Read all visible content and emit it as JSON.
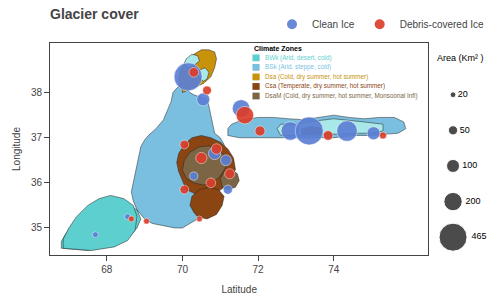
{
  "chart_data": {
    "type": "bubble",
    "title": "Glacier cover",
    "x_label": "Latitude",
    "y_label": "Longitude",
    "xlim": [
      66.5,
      76.5
    ],
    "ylim": [
      34.4,
      39.1
    ],
    "xticks": [
      68,
      70,
      72,
      74
    ],
    "yticks": [
      35,
      36,
      37,
      38
    ],
    "grid": false,
    "series": [
      {
        "name": "Clean Ice",
        "color": "#5B7FD4",
        "x": [
          70.15,
          70.55,
          71.55,
          72.85,
          73.35,
          74.35,
          75.05,
          70.85,
          71.15,
          71.2,
          70.3,
          68.55,
          67.7
        ],
        "y": [
          38.35,
          37.85,
          37.65,
          37.15,
          37.15,
          37.15,
          37.1,
          36.65,
          36.5,
          35.85,
          36.15,
          35.25,
          34.85
        ],
        "area": [
          465,
          100,
          180,
          200,
          465,
          250,
          100,
          90,
          70,
          50,
          40,
          20,
          20
        ]
      },
      {
        "name": "Debris-covered Ice",
        "color": "#DC3D2A",
        "x": [
          70.3,
          70.65,
          71.65,
          72.05,
          73.85,
          75.3,
          70.9,
          70.5,
          71.25,
          70.75,
          70.05,
          68.65,
          69.05,
          70.45,
          70.05
        ],
        "y": [
          38.45,
          38.05,
          37.5,
          37.15,
          37.05,
          37.05,
          36.75,
          36.55,
          36.2,
          36.0,
          35.85,
          35.2,
          35.15,
          35.2,
          36.85
        ],
        "area": [
          55,
          45,
          180,
          60,
          55,
          30,
          65,
          75,
          60,
          55,
          45,
          20,
          20,
          20,
          45
        ]
      }
    ],
    "size_legend": {
      "title": "Area (Km² )",
      "values": [
        20,
        50,
        100,
        200,
        465
      ]
    },
    "zones": {
      "title": "Climate Zones",
      "items": [
        {
          "name": "BWk (Arid, desert, cold)",
          "color": "#5ECFCF"
        },
        {
          "name": "BSk (Arid, steppe, cold)",
          "color": "#7ABFDF"
        },
        {
          "name": "Dsa (Cold, dry summer, hot summer)",
          "color": "#C8920A"
        },
        {
          "name": "Csa (Temperate, dry summer, hot summer)",
          "color": "#8B4513"
        },
        {
          "name": "DsaM (Cold, dry summer, hot summer, Monsoonal Infl)",
          "color": "#7B6545"
        }
      ]
    },
    "regions": [
      {
        "color": "#7ABFDF",
        "points": [
          [
            69.1,
            37.05
          ],
          [
            69.3,
            37.2
          ],
          [
            69.5,
            37.4
          ],
          [
            69.6,
            37.6
          ],
          [
            69.7,
            37.8
          ],
          [
            69.75,
            38.0
          ],
          [
            69.85,
            38.1
          ],
          [
            70.0,
            38.2
          ],
          [
            70.1,
            38.1
          ],
          [
            70.2,
            38.0
          ],
          [
            70.3,
            37.95
          ],
          [
            70.5,
            37.9
          ],
          [
            70.65,
            37.85
          ],
          [
            70.7,
            37.7
          ],
          [
            70.75,
            37.5
          ],
          [
            70.8,
            37.3
          ],
          [
            70.85,
            37.1
          ],
          [
            71.0,
            37.0
          ],
          [
            71.1,
            36.85
          ],
          [
            71.15,
            36.7
          ],
          [
            71.1,
            36.5
          ],
          [
            71.05,
            36.3
          ],
          [
            71.0,
            36.1
          ],
          [
            70.9,
            35.95
          ],
          [
            70.75,
            35.8
          ],
          [
            70.6,
            35.6
          ],
          [
            70.5,
            35.4
          ],
          [
            70.4,
            35.2
          ],
          [
            70.2,
            35.1
          ],
          [
            70.0,
            35.0
          ],
          [
            69.8,
            35.0
          ],
          [
            69.5,
            35.05
          ],
          [
            69.2,
            35.1
          ],
          [
            69.0,
            35.2
          ],
          [
            68.8,
            35.4
          ],
          [
            68.7,
            35.6
          ],
          [
            68.65,
            35.8
          ],
          [
            68.7,
            36.0
          ],
          [
            68.75,
            36.2
          ],
          [
            68.8,
            36.4
          ],
          [
            68.85,
            36.6
          ],
          [
            68.9,
            36.8
          ],
          [
            69.0,
            36.95
          ]
        ]
      },
      {
        "color": "#5ECFCF",
        "points": [
          [
            66.9,
            34.6
          ],
          [
            67.2,
            34.55
          ],
          [
            67.5,
            34.55
          ],
          [
            67.8,
            34.6
          ],
          [
            68.1,
            34.65
          ],
          [
            68.4,
            34.7
          ],
          [
            68.6,
            34.8
          ],
          [
            68.8,
            35.0
          ],
          [
            68.9,
            35.2
          ],
          [
            68.8,
            35.4
          ],
          [
            68.6,
            35.5
          ],
          [
            68.4,
            35.55
          ],
          [
            68.2,
            35.5
          ],
          [
            68.0,
            35.45
          ],
          [
            67.8,
            35.3
          ],
          [
            67.6,
            35.1
          ],
          [
            67.4,
            34.95
          ],
          [
            67.2,
            34.85
          ],
          [
            67.0,
            34.75
          ],
          [
            66.9,
            34.7
          ]
        ]
      },
      {
        "color": "#5ECFCF",
        "points": [
          [
            66.8,
            34.55
          ],
          [
            67.5,
            34.5
          ],
          [
            68.2,
            34.6
          ],
          [
            68.5,
            34.75
          ],
          [
            68.7,
            34.95
          ],
          [
            68.75,
            35.2
          ],
          [
            68.6,
            35.45
          ],
          [
            68.3,
            35.6
          ],
          [
            68.0,
            35.65
          ],
          [
            67.7,
            35.55
          ],
          [
            67.4,
            35.35
          ],
          [
            67.1,
            35.1
          ],
          [
            66.9,
            34.85
          ],
          [
            66.8,
            34.7
          ]
        ]
      },
      {
        "color": "#5ECFCF",
        "points": [
          [
            66.85,
            34.55
          ],
          [
            67.6,
            34.5
          ],
          [
            68.2,
            34.58
          ],
          [
            68.55,
            34.72
          ],
          [
            68.75,
            34.95
          ],
          [
            68.8,
            35.25
          ],
          [
            68.7,
            35.5
          ],
          [
            68.45,
            35.65
          ],
          [
            68.1,
            35.72
          ],
          [
            67.8,
            35.65
          ],
          [
            67.5,
            35.5
          ],
          [
            67.2,
            35.25
          ],
          [
            67.0,
            35.0
          ],
          [
            66.85,
            34.75
          ]
        ]
      },
      {
        "color": "#C8920A",
        "points": [
          [
            70.0,
            38.0
          ],
          [
            70.15,
            38.05
          ],
          [
            70.3,
            38.1
          ],
          [
            70.55,
            38.2
          ],
          [
            70.75,
            38.35
          ],
          [
            70.85,
            38.55
          ],
          [
            70.9,
            38.75
          ],
          [
            70.85,
            38.9
          ],
          [
            70.7,
            38.95
          ],
          [
            70.5,
            38.95
          ],
          [
            70.3,
            38.85
          ],
          [
            70.1,
            38.7
          ],
          [
            69.95,
            38.5
          ],
          [
            69.9,
            38.3
          ],
          [
            69.92,
            38.15
          ],
          [
            70.0,
            38.05
          ]
        ]
      },
      {
        "color": "#8B4513",
        "points": [
          [
            70.1,
            35.85
          ],
          [
            70.35,
            35.75
          ],
          [
            70.6,
            35.7
          ],
          [
            70.85,
            35.75
          ],
          [
            71.1,
            35.9
          ],
          [
            71.3,
            36.1
          ],
          [
            71.4,
            36.3
          ],
          [
            71.35,
            36.55
          ],
          [
            71.2,
            36.75
          ],
          [
            71.0,
            36.9
          ],
          [
            70.75,
            37.0
          ],
          [
            70.5,
            37.05
          ],
          [
            70.25,
            37.0
          ],
          [
            70.05,
            36.85
          ],
          [
            69.9,
            36.65
          ],
          [
            69.85,
            36.45
          ],
          [
            69.9,
            36.25
          ],
          [
            70.0,
            36.05
          ]
        ]
      },
      {
        "color": "#8B4513",
        "points": [
          [
            70.4,
            35.25
          ],
          [
            70.65,
            35.2
          ],
          [
            70.9,
            35.3
          ],
          [
            71.05,
            35.5
          ],
          [
            71.1,
            35.7
          ],
          [
            70.95,
            35.85
          ],
          [
            70.7,
            35.9
          ],
          [
            70.45,
            35.85
          ],
          [
            70.25,
            35.7
          ],
          [
            70.2,
            35.5
          ],
          [
            70.3,
            35.35
          ]
        ]
      },
      {
        "color": "#7B6545",
        "points": [
          [
            71.05,
            35.9
          ],
          [
            71.2,
            35.85
          ],
          [
            71.4,
            35.9
          ],
          [
            71.5,
            36.05
          ],
          [
            71.45,
            36.2
          ],
          [
            71.3,
            36.3
          ],
          [
            71.1,
            36.25
          ],
          [
            71.0,
            36.1
          ]
        ]
      },
      {
        "color": "#7ABFDF",
        "points": [
          [
            71.2,
            37.05
          ],
          [
            71.5,
            37.0
          ],
          [
            72.0,
            37.0
          ],
          [
            72.5,
            37.0
          ],
          [
            73.0,
            37.0
          ],
          [
            73.5,
            37.0
          ],
          [
            74.0,
            37.0
          ],
          [
            74.5,
            37.05
          ],
          [
            75.0,
            37.05
          ],
          [
            75.4,
            37.08
          ],
          [
            75.7,
            37.1
          ],
          [
            75.9,
            37.2
          ],
          [
            75.85,
            37.35
          ],
          [
            75.6,
            37.45
          ],
          [
            75.2,
            37.45
          ],
          [
            74.8,
            37.42
          ],
          [
            74.4,
            37.45
          ],
          [
            74.0,
            37.5
          ],
          [
            73.6,
            37.45
          ],
          [
            73.2,
            37.4
          ],
          [
            72.8,
            37.42
          ],
          [
            72.4,
            37.45
          ],
          [
            72.0,
            37.45
          ],
          [
            71.6,
            37.4
          ],
          [
            71.3,
            37.3
          ],
          [
            71.2,
            37.2
          ]
        ]
      },
      {
        "color": "#A8E8E8",
        "points": [
          [
            70.15,
            38.55
          ],
          [
            70.3,
            38.6
          ],
          [
            70.45,
            38.7
          ],
          [
            70.4,
            38.82
          ],
          [
            70.25,
            38.85
          ],
          [
            70.1,
            38.75
          ],
          [
            70.05,
            38.65
          ]
        ]
      },
      {
        "color": "#A8E8E8",
        "points": [
          [
            70.55,
            38.25
          ],
          [
            70.65,
            38.3
          ],
          [
            70.7,
            38.45
          ],
          [
            70.6,
            38.55
          ],
          [
            70.45,
            38.5
          ],
          [
            70.4,
            38.38
          ]
        ]
      },
      {
        "color": "#7B6545",
        "points": [
          [
            70.3,
            36.0
          ],
          [
            70.55,
            35.95
          ],
          [
            70.8,
            36.0
          ],
          [
            71.0,
            36.15
          ],
          [
            71.15,
            36.35
          ],
          [
            71.1,
            36.6
          ],
          [
            70.95,
            36.75
          ],
          [
            70.7,
            36.82
          ],
          [
            70.45,
            36.8
          ],
          [
            70.2,
            36.68
          ],
          [
            70.05,
            36.5
          ],
          [
            70.0,
            36.28
          ],
          [
            70.1,
            36.1
          ]
        ]
      },
      {
        "color": "#A8E8E8",
        "points": [
          [
            72.6,
            37.05
          ],
          [
            73.0,
            37.05
          ],
          [
            73.4,
            37.08
          ],
          [
            73.8,
            37.08
          ],
          [
            74.2,
            37.08
          ],
          [
            74.6,
            37.1
          ],
          [
            75.0,
            37.1
          ],
          [
            75.3,
            37.15
          ],
          [
            75.3,
            37.3
          ],
          [
            74.8,
            37.35
          ],
          [
            74.4,
            37.38
          ],
          [
            74.0,
            37.42
          ],
          [
            73.5,
            37.37
          ],
          [
            73.0,
            37.3
          ],
          [
            72.6,
            37.3
          ],
          [
            72.5,
            37.2
          ]
        ]
      },
      {
        "color": "#7B6545",
        "points": [
          [
            73.15,
            37.08
          ],
          [
            73.5,
            37.05
          ],
          [
            73.7,
            37.1
          ],
          [
            73.65,
            37.22
          ],
          [
            73.4,
            37.25
          ],
          [
            73.15,
            37.2
          ]
        ]
      }
    ]
  }
}
